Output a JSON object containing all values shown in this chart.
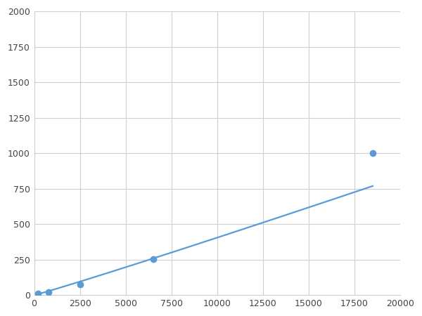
{
  "x": [
    200,
    800,
    2500,
    6500,
    18500
  ],
  "y": [
    10,
    20,
    75,
    255,
    1000
  ],
  "line_color": "#5B9BD5",
  "marker_color": "#5B9BD5",
  "marker_size": 6,
  "marker_style": "o",
  "line_width": 1.6,
  "xlim": [
    0,
    20000
  ],
  "ylim": [
    0,
    2000
  ],
  "xticks": [
    0,
    2500,
    5000,
    7500,
    10000,
    12500,
    15000,
    17500,
    20000
  ],
  "yticks": [
    0,
    250,
    500,
    750,
    1000,
    1250,
    1500,
    1750,
    2000
  ],
  "grid_color": "#d0d0d0",
  "background_color": "#ffffff",
  "fig_background": "#ffffff"
}
